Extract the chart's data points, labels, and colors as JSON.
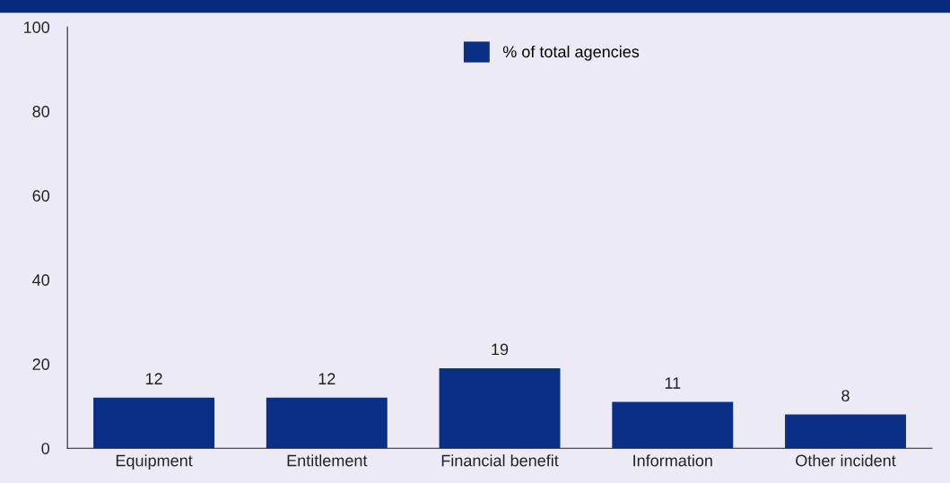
{
  "chart_data": {
    "type": "bar",
    "categories": [
      "Equipment",
      "Entitlement",
      "Financial benefit",
      "Information",
      "Other incident"
    ],
    "series": [
      {
        "name": "% of total agencies",
        "color": "#0b2f84",
        "values": [
          12,
          12,
          19,
          11,
          8
        ]
      }
    ],
    "ylim": [
      0,
      100
    ],
    "yticks": [
      0,
      20,
      40,
      60,
      80,
      100
    ],
    "data_labels": true,
    "legend": "top",
    "grid": false
  }
}
